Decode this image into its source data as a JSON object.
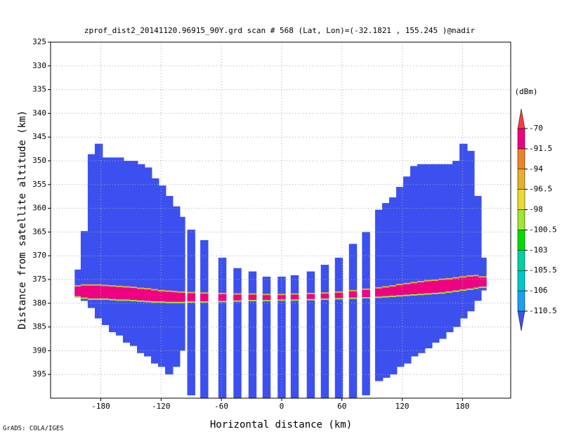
{
  "chart_data": {
    "type": "profile",
    "title": "zprof_dist2_20141120.96915_90Y.grd  scan # 568  (Lat, Lon)=(-32.1821 , 155.245 )@nadir",
    "xlabel": "Horizontal distance (km)",
    "ylabel": "Distance from satellite altitude (km)",
    "footer": "GrADS: COLA/IGES",
    "xlim": [
      -230,
      228
    ],
    "ylim": [
      325,
      400
    ],
    "y_inverted": true,
    "xticks": [
      -180,
      -120,
      -60,
      0,
      60,
      120,
      180
    ],
    "yticks": [
      325,
      330,
      335,
      340,
      345,
      350,
      355,
      360,
      365,
      370,
      375,
      380,
      385,
      390,
      395
    ],
    "grid": true,
    "strip_width": 8,
    "strips": {
      "x": [
        -202,
        -196,
        -189,
        -182,
        -175,
        -168,
        -161,
        -154,
        -147,
        -140,
        -133,
        -126,
        -119,
        -112,
        -105,
        -100,
        -90,
        -77,
        -59,
        -44,
        -29,
        -15,
        0,
        13,
        29,
        43,
        57,
        71,
        84,
        97,
        104,
        111,
        118,
        125,
        132,
        139,
        146,
        153,
        160,
        167,
        174,
        181,
        188,
        195,
        200
      ],
      "top": [
        372.9,
        364.8,
        348.6,
        346.4,
        349.3,
        349.3,
        349.3,
        350,
        350,
        350.7,
        351.4,
        353.7,
        355.2,
        357.4,
        359.6,
        361.8,
        364.5,
        366.7,
        370.4,
        372.6,
        373.3,
        374.4,
        374.4,
        374.1,
        373.3,
        371.9,
        370.4,
        367.5,
        365,
        360.3,
        358.9,
        357.7,
        355.5,
        353.3,
        351.1,
        350.7,
        350.7,
        350.7,
        350.7,
        350.7,
        350,
        346.4,
        347.9,
        357.4,
        370.4
      ],
      "bottom": [
        378.8,
        379.5,
        381,
        383.2,
        384.6,
        386.1,
        386.8,
        388.3,
        389,
        390.5,
        391.2,
        392.7,
        393.4,
        395,
        393.4,
        390,
        399.4,
        400,
        400,
        400,
        400,
        400,
        400,
        400,
        400,
        400,
        400,
        400,
        399.4,
        396.4,
        395.7,
        395,
        393.4,
        392.7,
        391.2,
        390.5,
        389.5,
        388.3,
        387.5,
        386.1,
        385,
        383.2,
        381.7,
        379.5,
        377.3
      ],
      "band_top": [
        376.5,
        376.3,
        376.3,
        376.3,
        376.4,
        376.5,
        376.6,
        376.7,
        376.8,
        377,
        377.1,
        377.3,
        377.5,
        377.6,
        377.7,
        377.8,
        377.9,
        378,
        378.1,
        378.2,
        378.2,
        378.3,
        378.3,
        378.2,
        378.1,
        378,
        377.8,
        377.5,
        377.2,
        376.9,
        376.7,
        376.5,
        376.2,
        376,
        375.8,
        375.6,
        375.4,
        375.3,
        375.1,
        375,
        374.8,
        374.6,
        374.4,
        374.3,
        374.6
      ],
      "band_bottom": [
        378.5,
        378.8,
        379,
        379,
        379,
        379.1,
        379.2,
        379.2,
        379.3,
        379.4,
        379.5,
        379.6,
        379.6,
        379.7,
        379.7,
        379.7,
        379.6,
        379.6,
        379.5,
        379.4,
        379.3,
        379.3,
        379.2,
        379.2,
        379.1,
        379,
        378.9,
        378.8,
        378.7,
        378.6,
        378.5,
        378.4,
        378.3,
        378.2,
        378.1,
        378,
        377.9,
        377.8,
        377.7,
        377.5,
        377.3,
        377.1,
        376.9,
        376.7,
        376.5
      ]
    },
    "colorbar": {
      "title": "(dBm)",
      "levels": [
        -110.5,
        -106,
        -105.5,
        -103,
        -100.5,
        -98,
        -96.5,
        -94,
        -91.5,
        -70
      ],
      "colors": [
        "#3c50f0",
        "#1ea0f0",
        "#00c8c8",
        "#00d2a0",
        "#00dc00",
        "#a0e632",
        "#e6dc32",
        "#e6af2d",
        "#f08228",
        "#f00082",
        "#fa3c3c"
      ]
    }
  }
}
